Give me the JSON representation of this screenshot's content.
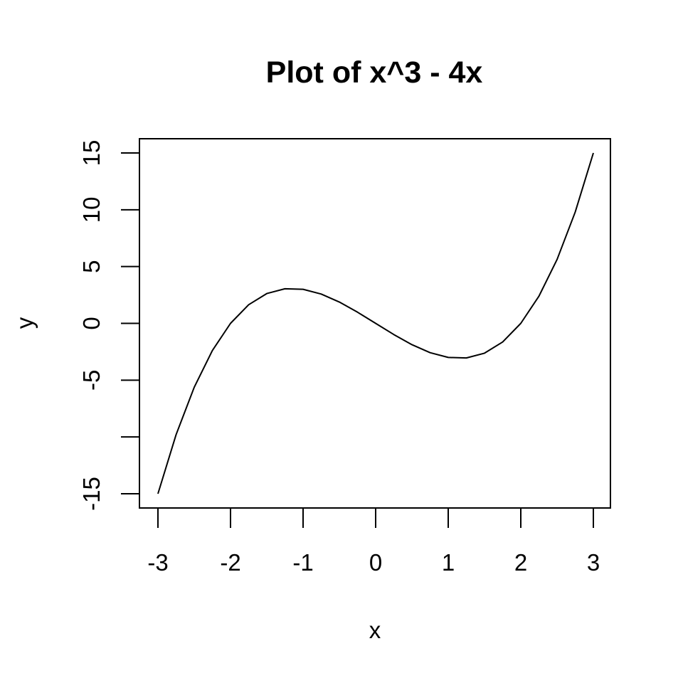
{
  "chart_data": {
    "type": "line",
    "title": "Plot of x^3 - 4x",
    "xlabel": "x",
    "ylabel": "y",
    "xlim": [
      -3,
      3
    ],
    "ylim": [
      -15,
      15
    ],
    "x_ticks": [
      -3,
      -2,
      -1,
      0,
      1,
      2,
      3
    ],
    "x_tick_labels": [
      "-3",
      "-2",
      "-1",
      "0",
      "1",
      "2",
      "3"
    ],
    "y_ticks": [
      -15,
      -10,
      -5,
      0,
      5,
      10,
      15
    ],
    "y_tick_labels": [
      "-15",
      "",
      "-5",
      "0",
      "5",
      "10",
      "15"
    ],
    "grid": false,
    "series": [
      {
        "x": [
          -3,
          -2.75,
          -2.5,
          -2.25,
          -2,
          -1.75,
          -1.5,
          -1.25,
          -1,
          -0.75,
          -0.5,
          -0.25,
          0,
          0.25,
          0.5,
          0.75,
          1,
          1.25,
          1.5,
          1.75,
          2,
          2.25,
          2.5,
          2.75,
          3
        ],
        "y": [
          -15,
          -9.797,
          -5.625,
          -2.391,
          0,
          1.641,
          2.625,
          3.047,
          3,
          2.578,
          1.875,
          0.984,
          0,
          -0.984,
          -1.875,
          -2.578,
          -3,
          -3.047,
          -2.625,
          -1.641,
          0,
          2.391,
          5.625,
          9.797,
          15
        ]
      }
    ]
  }
}
